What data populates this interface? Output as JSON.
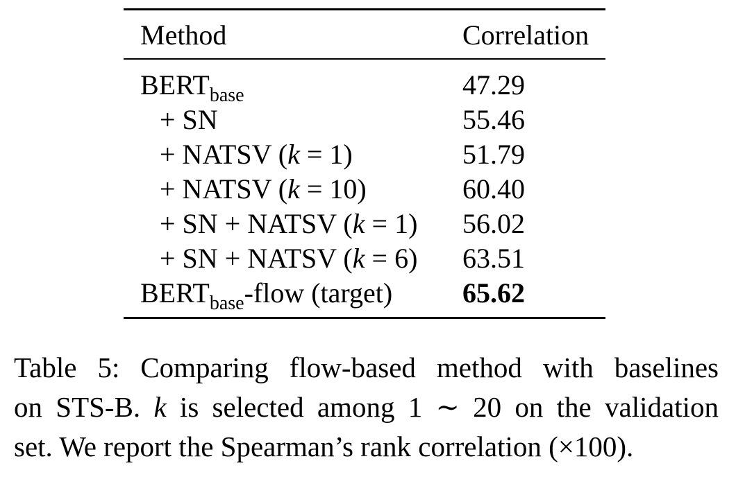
{
  "table": {
    "headers": {
      "method": "Method",
      "correlation": "Correlation"
    },
    "rows": [
      {
        "method_main": "BERT",
        "method_sub": "base",
        "method_rest": "",
        "correlation": "47.29",
        "bold": false,
        "indent": false
      },
      {
        "method_main": "+ SN",
        "method_sub": "",
        "method_rest": "",
        "correlation": "55.46",
        "bold": false,
        "indent": true
      },
      {
        "method_main": "+ NATSV (",
        "method_k": "k",
        "method_after_k": " = 1)",
        "correlation": "51.79",
        "bold": false,
        "indent": true
      },
      {
        "method_main": "+ NATSV (",
        "method_k": "k",
        "method_after_k": " = 10)",
        "correlation": "60.40",
        "bold": false,
        "indent": true
      },
      {
        "method_main": "+ SN + NATSV (",
        "method_k": "k",
        "method_after_k": " = 1)",
        "correlation": "56.02",
        "bold": false,
        "indent": true
      },
      {
        "method_main": "+ SN + NATSV (",
        "method_k": "k",
        "method_after_k": " = 6)",
        "correlation": "63.51",
        "bold": false,
        "indent": true
      },
      {
        "method_main": "BERT",
        "method_sub": "base",
        "method_rest": "-flow (target)",
        "correlation": "65.62",
        "bold": true,
        "indent": false
      }
    ]
  },
  "caption": {
    "line1": "Table 5: Comparing flow-based method with baselines",
    "line2_a": "on STS-B. ",
    "line2_k": "k",
    "line2_b": " is selected among 1 ∼ 20 on the validation",
    "line3": "set. We report the Spearman’s rank correlation (×100)."
  }
}
